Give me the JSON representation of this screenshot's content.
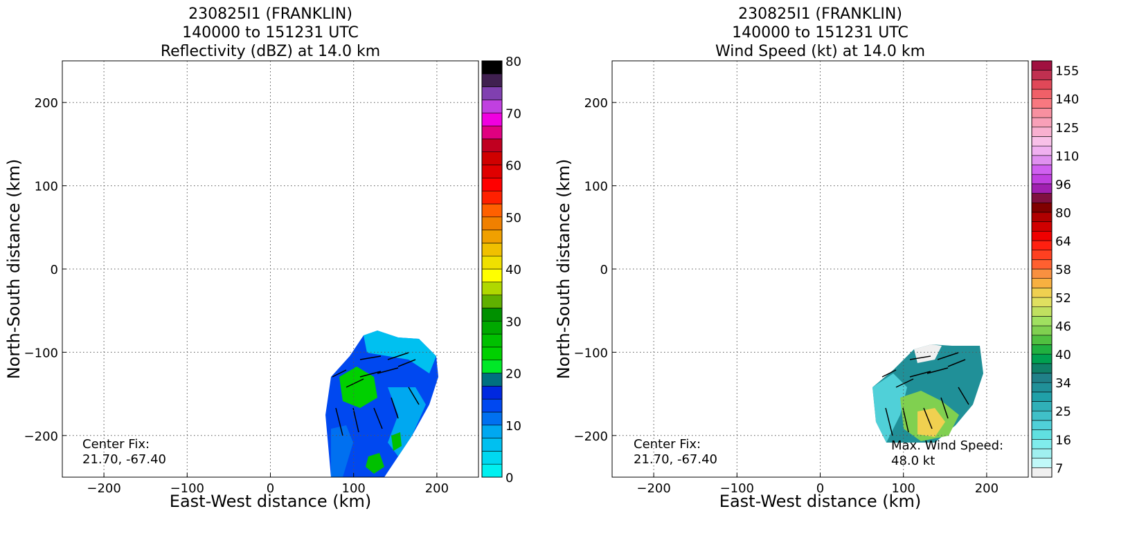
{
  "chart_data": [
    {
      "type": "heatmap",
      "title": [
        "230825I1 (FRANKLIN)",
        "140000 to 151231 UTC",
        "Reflectivity (dBZ) at 14.0 km"
      ],
      "xlabel": "East-West distance (km)",
      "ylabel": "North-South distance (km)",
      "xlim": [
        -250,
        250
      ],
      "ylim": [
        -250,
        250
      ],
      "xticks": [
        {
          "value": -200,
          "label": "−200"
        },
        {
          "value": -100,
          "label": "−100"
        },
        0,
        100,
        200
      ],
      "yticks": [
        {
          "value": -200,
          "label": "−200"
        },
        {
          "value": -100,
          "label": "−100"
        },
        0,
        100,
        200
      ],
      "grid": true,
      "colorbar": {
        "lim": [
          0,
          80
        ],
        "ticks": [
          0,
          10,
          20,
          30,
          40,
          50,
          60,
          70,
          80
        ],
        "colors": [
          "#00f0f0",
          "#00d8f0",
          "#00c0f0",
          "#00a8f0",
          "#0070f0",
          "#0048f0",
          "#0028e0",
          "#007080",
          "#00e828",
          "#00d000",
          "#00c000",
          "#00a800",
          "#009000",
          "#60b000",
          "#b0d800",
          "#ffff00",
          "#f0e000",
          "#f0c000",
          "#f0a000",
          "#f08000",
          "#ff6000",
          "#ff2000",
          "#ff0000",
          "#e00000",
          "#d00000",
          "#c00020",
          "#e00080",
          "#f000e0",
          "#c040e0",
          "#8040b0",
          "#402050",
          "#000000"
        ]
      },
      "annotations": [
        {
          "lines": [
            "Center Fix:",
            "21.70, -67.40"
          ]
        }
      ]
    },
    {
      "type": "heatmap",
      "title": [
        "230825I1 (FRANKLIN)",
        "140000 to 151231 UTC",
        "Wind Speed (kt) at 14.0 km"
      ],
      "xlabel": "East-West distance (km)",
      "ylabel": "North-South distance (km)",
      "xlim": [
        -250,
        250
      ],
      "ylim": [
        -250,
        250
      ],
      "xticks": [
        {
          "value": -200,
          "label": "−200"
        },
        {
          "value": -100,
          "label": "−100"
        },
        0,
        100,
        200
      ],
      "yticks": [
        {
          "value": -200,
          "label": "−200"
        },
        {
          "value": -100,
          "label": "−100"
        },
        0,
        100,
        200
      ],
      "grid": true,
      "colorbar": {
        "ticks": [
          7,
          16,
          25,
          34,
          40,
          46,
          52,
          58,
          64,
          80,
          96,
          110,
          125,
          140,
          155
        ],
        "colors": [
          "#f0f0f0",
          "#c0f8f8",
          "#a0f0f0",
          "#80ecec",
          "#60e0e0",
          "#50d0d8",
          "#40c0c8",
          "#30b0b8",
          "#20a0a8",
          "#209098",
          "#208088",
          "#108068",
          "#00a050",
          "#20b040",
          "#50c040",
          "#80d050",
          "#a0e060",
          "#c0e060",
          "#e0e060",
          "#f0d050",
          "#f8b040",
          "#f89040",
          "#ff6030",
          "#ff4020",
          "#ff2010",
          "#f00000",
          "#d00000",
          "#b00000",
          "#800000",
          "#801040",
          "#a020b0",
          "#c040e0",
          "#d060f0",
          "#e090f0",
          "#f0b0f0",
          "#f8c0e8",
          "#f8b0d0",
          "#f8a0b8",
          "#f890a0",
          "#f87880",
          "#f06068",
          "#e04858",
          "#c03050",
          "#a01040"
        ]
      },
      "annotations": [
        {
          "lines": [
            "Center Fix:",
            "21.70, -67.40"
          ]
        },
        {
          "lines": [
            "Max. Wind Speed:",
            "48.0 kt"
          ]
        }
      ]
    }
  ]
}
